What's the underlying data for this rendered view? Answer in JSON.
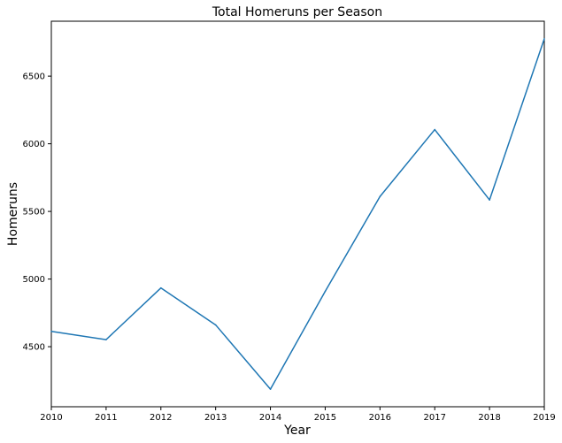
{
  "chart_data": {
    "type": "line",
    "title": "Total Homeruns per Season",
    "xlabel": "Year",
    "ylabel": "Homeruns",
    "x": [
      2010,
      2011,
      2012,
      2013,
      2014,
      2015,
      2016,
      2017,
      2018,
      2019
    ],
    "series": [
      {
        "values": [
          4613,
          4552,
          4934,
          4661,
          4186,
          4909,
          5610,
          6105,
          5585,
          6776
        ]
      }
    ],
    "xticks": [
      "2010",
      "2011",
      "2012",
      "2013",
      "2014",
      "2015",
      "2016",
      "2017",
      "2018",
      "2019"
    ],
    "yticks": [
      "4500",
      "5000",
      "5500",
      "6000",
      "6500"
    ],
    "xlim": [
      2010,
      2019
    ],
    "ylim": [
      4056,
      6906
    ],
    "grid": false,
    "line_color": "#1f77b4"
  }
}
